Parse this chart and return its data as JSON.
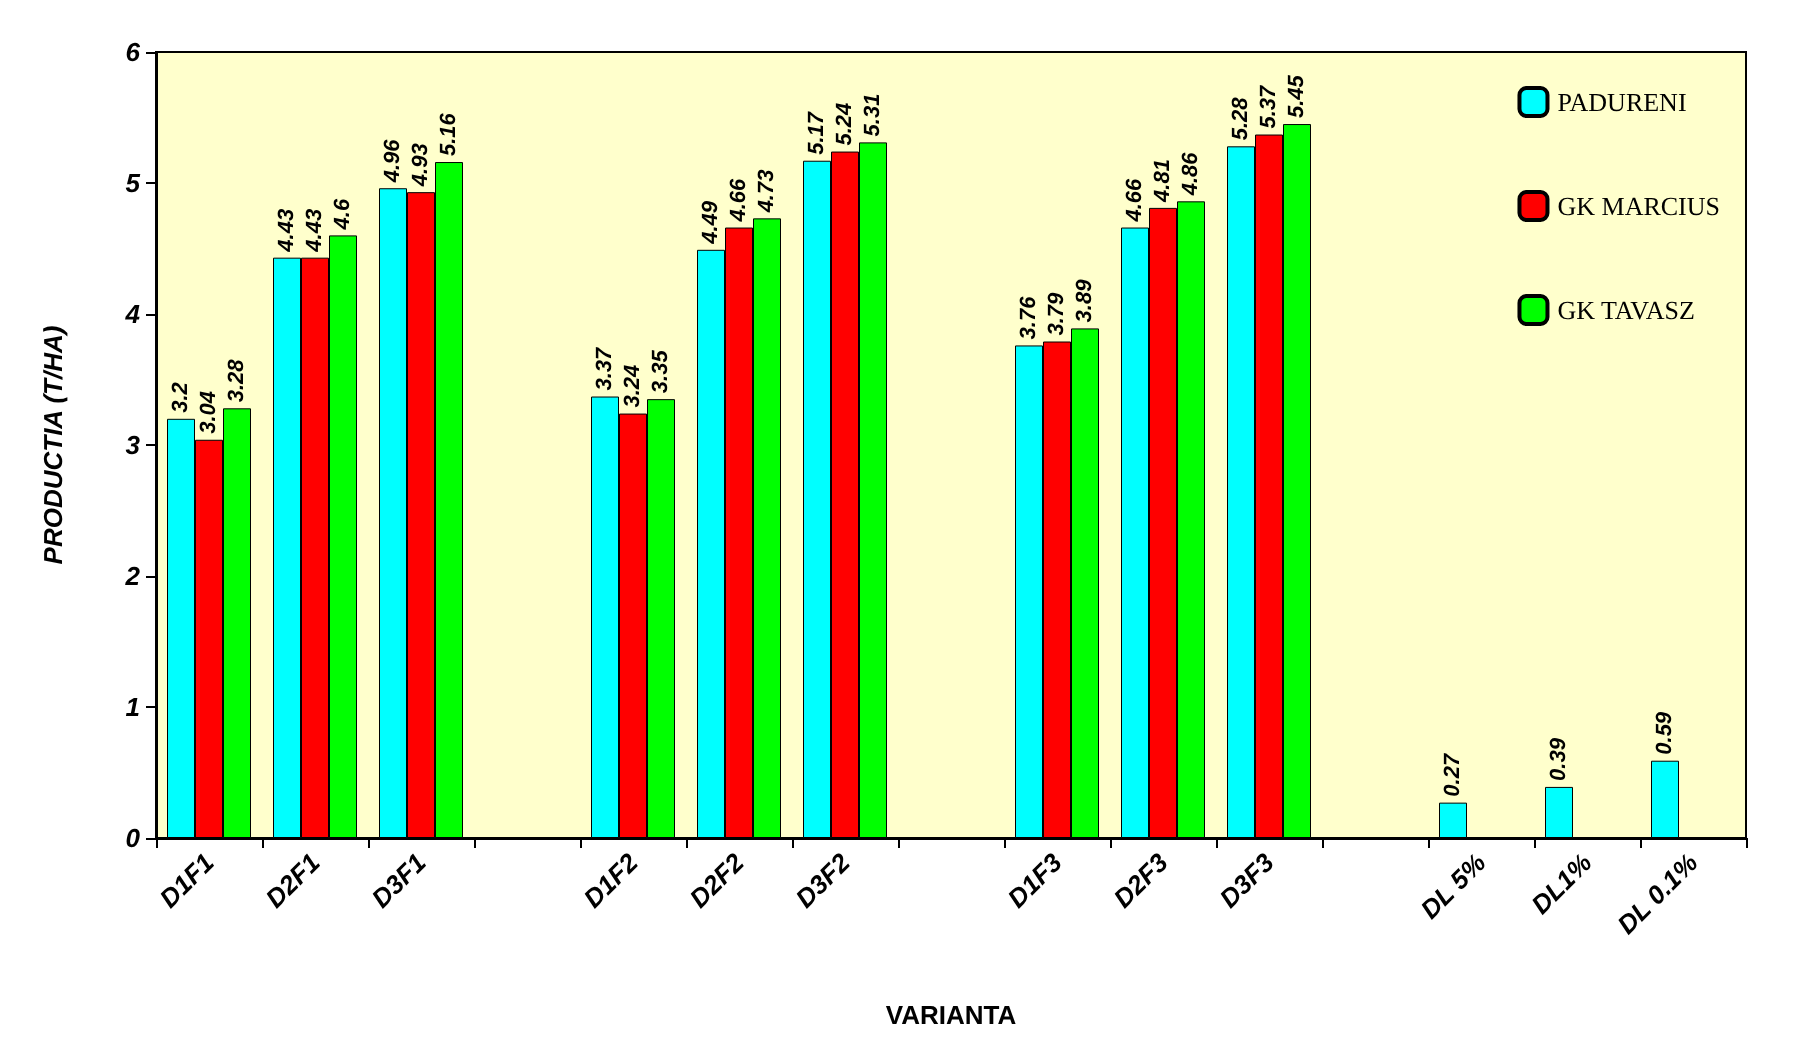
{
  "chart_data": {
    "type": "bar",
    "xlabel": "VARIANTA",
    "ylabel": "PRODUCTIA (T/HA)",
    "categories": [
      "D1F1",
      "D2F1",
      "D3F1",
      null,
      "D1F2",
      "D2F2",
      "D3F2",
      null,
      "D1F3",
      "D2F3",
      "D3F3",
      null,
      "DL 5%",
      "DL1%",
      "DL 0.1%"
    ],
    "series": [
      {
        "name": "PADURENI",
        "color": "#00ffff",
        "values": [
          3.2,
          4.43,
          4.96,
          null,
          3.37,
          4.49,
          5.17,
          null,
          3.76,
          4.66,
          5.28,
          null,
          0.27,
          0.39,
          0.59
        ]
      },
      {
        "name": "GK MARCIUS",
        "color": "#ff0000",
        "values": [
          3.04,
          4.43,
          4.93,
          null,
          3.24,
          4.66,
          5.24,
          null,
          3.79,
          4.81,
          5.37,
          null,
          null,
          null,
          null
        ]
      },
      {
        "name": "GK TAVASZ",
        "color": "#00ff00",
        "values": [
          3.28,
          4.6,
          5.16,
          null,
          3.35,
          4.73,
          5.31,
          null,
          3.89,
          4.86,
          5.45,
          null,
          null,
          null,
          null
        ]
      }
    ],
    "ylim": [
      0,
      6
    ],
    "yticks": [
      0,
      1,
      2,
      3,
      4,
      5,
      6
    ],
    "grid": false,
    "legend": "top right",
    "data_labels": true
  }
}
